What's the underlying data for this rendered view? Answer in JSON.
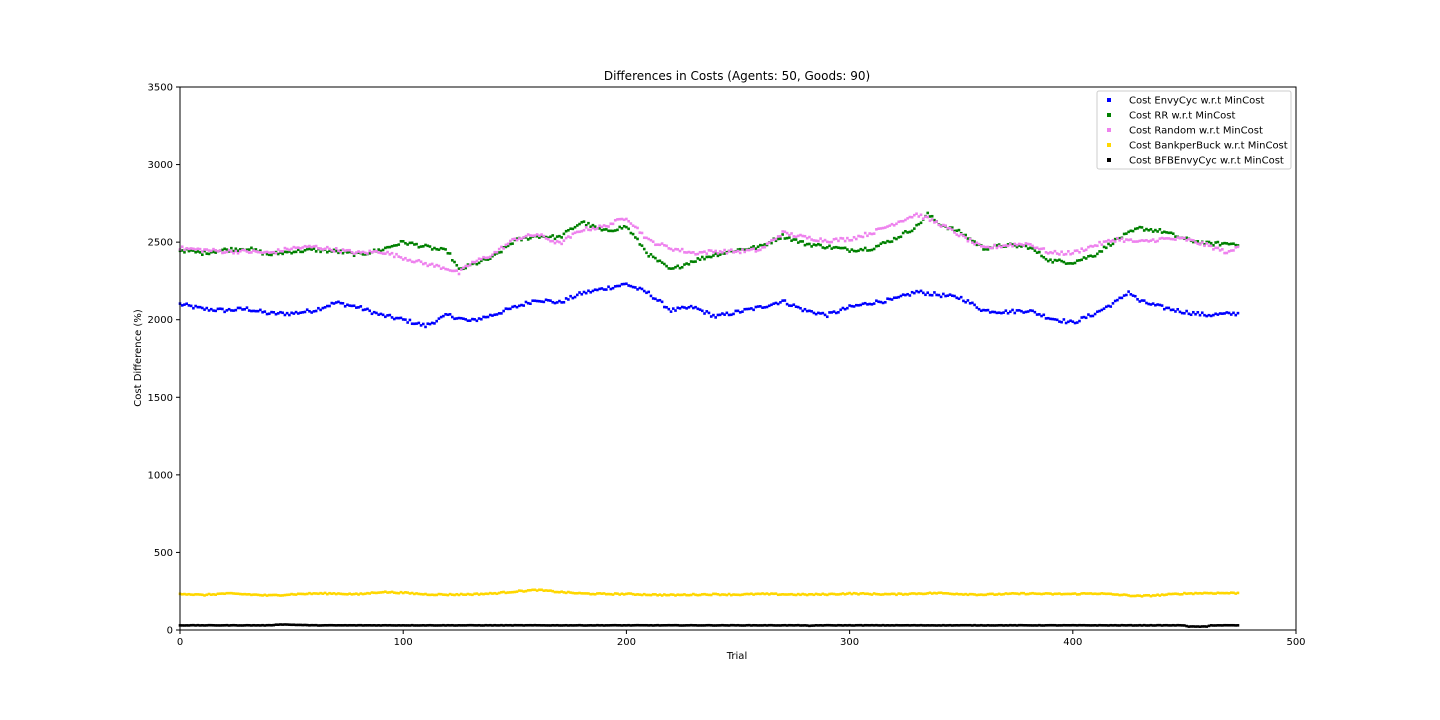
{
  "chart_data": {
    "type": "scatter",
    "title": "Differences in Costs (Agents: 50, Goods: 90)",
    "xlabel": "Trial",
    "ylabel": "Cost Difference (%)",
    "xlim": [
      0,
      500
    ],
    "ylim": [
      0,
      3500
    ],
    "xticks": [
      "0",
      "100",
      "200",
      "300",
      "400",
      "500"
    ],
    "yticks": [
      "0",
      "500",
      "1000",
      "1500",
      "2000",
      "2500",
      "3000",
      "3500"
    ],
    "grid": false,
    "legend": "top-right",
    "x_range": [
      0,
      474
    ],
    "series": [
      {
        "name": "Cost EnvyCyc w.r.t MinCost",
        "color": "#0000ff",
        "keypoints": [
          [
            0,
            2100
          ],
          [
            10,
            2070
          ],
          [
            20,
            2060
          ],
          [
            30,
            2070
          ],
          [
            40,
            2040
          ],
          [
            50,
            2040
          ],
          [
            60,
            2060
          ],
          [
            70,
            2110
          ],
          [
            80,
            2080
          ],
          [
            90,
            2030
          ],
          [
            100,
            2000
          ],
          [
            110,
            1960
          ],
          [
            120,
            2030
          ],
          [
            130,
            1990
          ],
          [
            140,
            2030
          ],
          [
            150,
            2080
          ],
          [
            160,
            2130
          ],
          [
            170,
            2110
          ],
          [
            180,
            2170
          ],
          [
            190,
            2200
          ],
          [
            200,
            2230
          ],
          [
            210,
            2170
          ],
          [
            220,
            2060
          ],
          [
            230,
            2080
          ],
          [
            240,
            2020
          ],
          [
            250,
            2050
          ],
          [
            260,
            2080
          ],
          [
            270,
            2120
          ],
          [
            280,
            2060
          ],
          [
            290,
            2030
          ],
          [
            300,
            2080
          ],
          [
            310,
            2110
          ],
          [
            320,
            2130
          ],
          [
            330,
            2180
          ],
          [
            340,
            2160
          ],
          [
            350,
            2140
          ],
          [
            360,
            2060
          ],
          [
            370,
            2050
          ],
          [
            380,
            2060
          ],
          [
            390,
            2010
          ],
          [
            400,
            1980
          ],
          [
            410,
            2040
          ],
          [
            420,
            2120
          ],
          [
            425,
            2180
          ],
          [
            430,
            2120
          ],
          [
            440,
            2080
          ],
          [
            450,
            2050
          ],
          [
            460,
            2030
          ],
          [
            474,
            2040
          ]
        ]
      },
      {
        "name": "Cost RR w.r.t MinCost",
        "color": "#008000",
        "keypoints": [
          [
            0,
            2450
          ],
          [
            10,
            2430
          ],
          [
            20,
            2450
          ],
          [
            30,
            2460
          ],
          [
            40,
            2420
          ],
          [
            50,
            2440
          ],
          [
            60,
            2450
          ],
          [
            70,
            2440
          ],
          [
            80,
            2420
          ],
          [
            90,
            2450
          ],
          [
            100,
            2500
          ],
          [
            110,
            2470
          ],
          [
            120,
            2440
          ],
          [
            125,
            2320
          ],
          [
            130,
            2350
          ],
          [
            140,
            2400
          ],
          [
            150,
            2510
          ],
          [
            160,
            2540
          ],
          [
            170,
            2530
          ],
          [
            180,
            2630
          ],
          [
            190,
            2570
          ],
          [
            200,
            2600
          ],
          [
            210,
            2420
          ],
          [
            220,
            2320
          ],
          [
            230,
            2380
          ],
          [
            240,
            2420
          ],
          [
            250,
            2450
          ],
          [
            260,
            2470
          ],
          [
            270,
            2540
          ],
          [
            280,
            2490
          ],
          [
            290,
            2470
          ],
          [
            300,
            2450
          ],
          [
            310,
            2460
          ],
          [
            320,
            2520
          ],
          [
            330,
            2600
          ],
          [
            335,
            2680
          ],
          [
            340,
            2620
          ],
          [
            350,
            2560
          ],
          [
            360,
            2460
          ],
          [
            370,
            2480
          ],
          [
            380,
            2470
          ],
          [
            390,
            2380
          ],
          [
            400,
            2370
          ],
          [
            410,
            2420
          ],
          [
            420,
            2520
          ],
          [
            430,
            2590
          ],
          [
            440,
            2570
          ],
          [
            450,
            2520
          ],
          [
            460,
            2490
          ],
          [
            474,
            2490
          ]
        ]
      },
      {
        "name": "Cost Random w.r.t MinCost",
        "color": "#ee82ee",
        "keypoints": [
          [
            0,
            2460
          ],
          [
            10,
            2450
          ],
          [
            20,
            2440
          ],
          [
            30,
            2440
          ],
          [
            40,
            2430
          ],
          [
            50,
            2460
          ],
          [
            60,
            2470
          ],
          [
            70,
            2450
          ],
          [
            80,
            2430
          ],
          [
            90,
            2440
          ],
          [
            100,
            2400
          ],
          [
            110,
            2360
          ],
          [
            120,
            2330
          ],
          [
            125,
            2300
          ],
          [
            130,
            2360
          ],
          [
            140,
            2420
          ],
          [
            150,
            2520
          ],
          [
            160,
            2550
          ],
          [
            170,
            2490
          ],
          [
            180,
            2580
          ],
          [
            190,
            2600
          ],
          [
            200,
            2660
          ],
          [
            210,
            2510
          ],
          [
            220,
            2460
          ],
          [
            230,
            2430
          ],
          [
            240,
            2440
          ],
          [
            250,
            2440
          ],
          [
            260,
            2450
          ],
          [
            270,
            2560
          ],
          [
            280,
            2530
          ],
          [
            290,
            2510
          ],
          [
            300,
            2520
          ],
          [
            310,
            2560
          ],
          [
            320,
            2620
          ],
          [
            330,
            2680
          ],
          [
            340,
            2620
          ],
          [
            350,
            2540
          ],
          [
            360,
            2460
          ],
          [
            370,
            2480
          ],
          [
            380,
            2490
          ],
          [
            390,
            2430
          ],
          [
            400,
            2430
          ],
          [
            410,
            2480
          ],
          [
            420,
            2520
          ],
          [
            430,
            2500
          ],
          [
            440,
            2520
          ],
          [
            450,
            2520
          ],
          [
            460,
            2480
          ],
          [
            470,
            2430
          ],
          [
            474,
            2470
          ]
        ]
      },
      {
        "name": "Cost BankperBuck w.r.t MinCost",
        "color": "#ffd700",
        "keypoints": [
          [
            0,
            235
          ],
          [
            10,
            225
          ],
          [
            20,
            235
          ],
          [
            30,
            230
          ],
          [
            40,
            222
          ],
          [
            50,
            230
          ],
          [
            60,
            235
          ],
          [
            70,
            235
          ],
          [
            80,
            230
          ],
          [
            90,
            245
          ],
          [
            100,
            240
          ],
          [
            110,
            230
          ],
          [
            120,
            228
          ],
          [
            130,
            230
          ],
          [
            140,
            235
          ],
          [
            150,
            248
          ],
          [
            160,
            258
          ],
          [
            170,
            245
          ],
          [
            180,
            235
          ],
          [
            190,
            232
          ],
          [
            200,
            232
          ],
          [
            210,
            228
          ],
          [
            220,
            225
          ],
          [
            230,
            228
          ],
          [
            240,
            230
          ],
          [
            250,
            228
          ],
          [
            260,
            232
          ],
          [
            270,
            230
          ],
          [
            280,
            228
          ],
          [
            290,
            230
          ],
          [
            300,
            235
          ],
          [
            310,
            232
          ],
          [
            320,
            230
          ],
          [
            330,
            235
          ],
          [
            340,
            238
          ],
          [
            350,
            232
          ],
          [
            360,
            228
          ],
          [
            370,
            232
          ],
          [
            380,
            235
          ],
          [
            390,
            232
          ],
          [
            400,
            232
          ],
          [
            410,
            236
          ],
          [
            420,
            228
          ],
          [
            430,
            218
          ],
          [
            440,
            226
          ],
          [
            450,
            235
          ],
          [
            460,
            238
          ],
          [
            474,
            238
          ]
        ]
      },
      {
        "name": "Cost BFBEnvyCyc w.r.t MinCost",
        "color": "#000000",
        "keypoints": [
          [
            0,
            30
          ],
          [
            40,
            30
          ],
          [
            45,
            36
          ],
          [
            55,
            32
          ],
          [
            60,
            30
          ],
          [
            280,
            30
          ],
          [
            282,
            26
          ],
          [
            285,
            30
          ],
          [
            450,
            30
          ],
          [
            452,
            22
          ],
          [
            460,
            22
          ],
          [
            462,
            30
          ],
          [
            474,
            30
          ]
        ]
      }
    ]
  }
}
